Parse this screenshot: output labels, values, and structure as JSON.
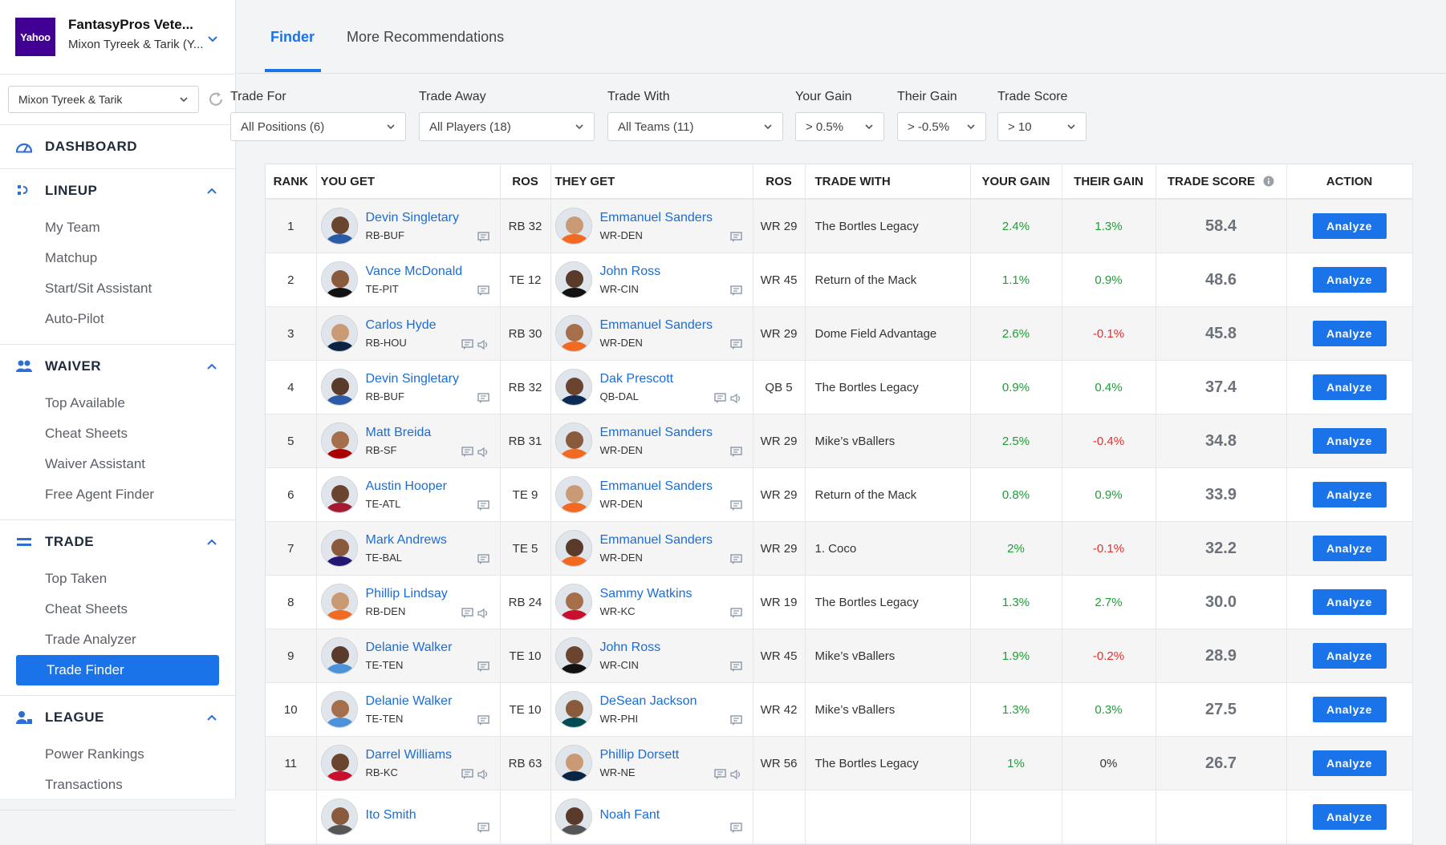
{
  "sidebar": {
    "league_logo": "Yahoo",
    "league_name": "FantasyPros Vete...",
    "league_team": "Mixon Tyreek & Tarik (Y...",
    "team_select": "Mixon Tyreek & Tarik",
    "sections": [
      {
        "label": "DASHBOARD",
        "icon": "dashboard-icon",
        "items": []
      },
      {
        "label": "LINEUP",
        "icon": "lineup-icon",
        "items": [
          "My Team",
          "Matchup",
          "Start/Sit Assistant",
          "Auto-Pilot"
        ]
      },
      {
        "label": "WAIVER",
        "icon": "waiver-icon",
        "items": [
          "Top Available",
          "Cheat Sheets",
          "Waiver Assistant",
          "Free Agent Finder"
        ]
      },
      {
        "label": "TRADE",
        "icon": "trade-icon",
        "items": [
          "Top Taken",
          "Cheat Sheets",
          "Trade Analyzer",
          "Trade Finder"
        ]
      },
      {
        "label": "LEAGUE",
        "icon": "league-icon",
        "items": [
          "Power Rankings",
          "Transactions"
        ]
      }
    ],
    "active_item": "Trade Finder"
  },
  "tabs": [
    "Finder",
    "More Recommendations"
  ],
  "filters": [
    {
      "label": "Trade For",
      "value": "All Positions (6)"
    },
    {
      "label": "Trade Away",
      "value": "All Players (18)"
    },
    {
      "label": "Trade With",
      "value": "All Teams (11)"
    },
    {
      "label": "Your Gain",
      "value": "> 0.5%"
    },
    {
      "label": "Their Gain",
      "value": "> -0.5%"
    },
    {
      "label": "Trade Score",
      "value": "> 10"
    }
  ],
  "table": {
    "headers": [
      "RANK",
      "YOU GET",
      "ROS",
      "THEY GET",
      "ROS",
      "TRADE WITH",
      "YOUR GAIN",
      "THEIR GAIN",
      "TRADE SCORE",
      "ACTION"
    ],
    "action_label": "Analyze",
    "rows": [
      {
        "rank": "1",
        "get_name": "Devin Singletary",
        "get_team": "RB-BUF",
        "get_ros": "RB 32",
        "give_name": "Emmanuel Sanders",
        "give_team": "WR-DEN",
        "give_ros": "WR 29",
        "trade_with": "The Bortles Legacy",
        "your_gain": "2.4%",
        "their_gain": "1.3%",
        "score": "58.4"
      },
      {
        "rank": "2",
        "get_name": "Vance McDonald",
        "get_team": "TE-PIT",
        "get_ros": "TE 12",
        "give_name": "John Ross",
        "give_team": "WR-CIN",
        "give_ros": "WR 45",
        "trade_with": "Return of the Mack",
        "your_gain": "1.1%",
        "their_gain": "0.9%",
        "score": "48.6"
      },
      {
        "rank": "3",
        "get_name": "Carlos Hyde",
        "get_team": "RB-HOU",
        "get_ros": "RB 30",
        "give_name": "Emmanuel Sanders",
        "give_team": "WR-DEN",
        "give_ros": "WR 29",
        "trade_with": "Dome Field Advantage",
        "your_gain": "2.6%",
        "their_gain": "-0.1%",
        "score": "45.8"
      },
      {
        "rank": "4",
        "get_name": "Devin Singletary",
        "get_team": "RB-BUF",
        "get_ros": "RB 32",
        "give_name": "Dak Prescott",
        "give_team": "QB-DAL",
        "give_ros": "QB 5",
        "trade_with": "The Bortles Legacy",
        "your_gain": "0.9%",
        "their_gain": "0.4%",
        "score": "37.4"
      },
      {
        "rank": "5",
        "get_name": "Matt Breida",
        "get_team": "RB-SF",
        "get_ros": "RB 31",
        "give_name": "Emmanuel Sanders",
        "give_team": "WR-DEN",
        "give_ros": "WR 29",
        "trade_with": "Mike’s vBallers",
        "your_gain": "2.5%",
        "their_gain": "-0.4%",
        "score": "34.8"
      },
      {
        "rank": "6",
        "get_name": "Austin Hooper",
        "get_team": "TE-ATL",
        "get_ros": "TE 9",
        "give_name": "Emmanuel Sanders",
        "give_team": "WR-DEN",
        "give_ros": "WR 29",
        "trade_with": "Return of the Mack",
        "your_gain": "0.8%",
        "their_gain": "0.9%",
        "score": "33.9"
      },
      {
        "rank": "7",
        "get_name": "Mark Andrews",
        "get_team": "TE-BAL",
        "get_ros": "TE 5",
        "give_name": "Emmanuel Sanders",
        "give_team": "WR-DEN",
        "give_ros": "WR 29",
        "trade_with": "1. Coco",
        "your_gain": "2%",
        "their_gain": "-0.1%",
        "score": "32.2"
      },
      {
        "rank": "8",
        "get_name": "Phillip Lindsay",
        "get_team": "RB-DEN",
        "get_ros": "RB 24",
        "give_name": "Sammy Watkins",
        "give_team": "WR-KC",
        "give_ros": "WR 19",
        "trade_with": "The Bortles Legacy",
        "your_gain": "1.3%",
        "their_gain": "2.7%",
        "score": "30.0"
      },
      {
        "rank": "9",
        "get_name": "Delanie Walker",
        "get_team": "TE-TEN",
        "get_ros": "TE 10",
        "give_name": "John Ross",
        "give_team": "WR-CIN",
        "give_ros": "WR 45",
        "trade_with": "Mike’s vBallers",
        "your_gain": "1.9%",
        "their_gain": "-0.2%",
        "score": "28.9"
      },
      {
        "rank": "10",
        "get_name": "Delanie Walker",
        "get_team": "TE-TEN",
        "get_ros": "TE 10",
        "give_name": "DeSean Jackson",
        "give_team": "WR-PHI",
        "give_ros": "WR 42",
        "trade_with": "Mike’s vBallers",
        "your_gain": "1.3%",
        "their_gain": "0.3%",
        "score": "27.5"
      },
      {
        "rank": "11",
        "get_name": "Darrel Williams",
        "get_team": "RB-KC",
        "get_ros": "RB 63",
        "give_name": "Phillip Dorsett",
        "give_team": "WR-NE",
        "give_ros": "WR 56",
        "trade_with": "The Bortles Legacy",
        "your_gain": "1%",
        "their_gain": "0%",
        "score": "26.7"
      },
      {
        "rank": "",
        "get_name": "Ito Smith",
        "get_team": "",
        "get_ros": "",
        "give_name": "Noah Fant",
        "give_team": "",
        "give_ros": "",
        "trade_with": "",
        "your_gain": "",
        "their_gain": "",
        "score": ""
      }
    ]
  },
  "colors": {
    "accent": "#1a73e8",
    "gain_positive": "#1f9d36",
    "gain_negative": "#e2302f",
    "yahoo": "#410093"
  }
}
